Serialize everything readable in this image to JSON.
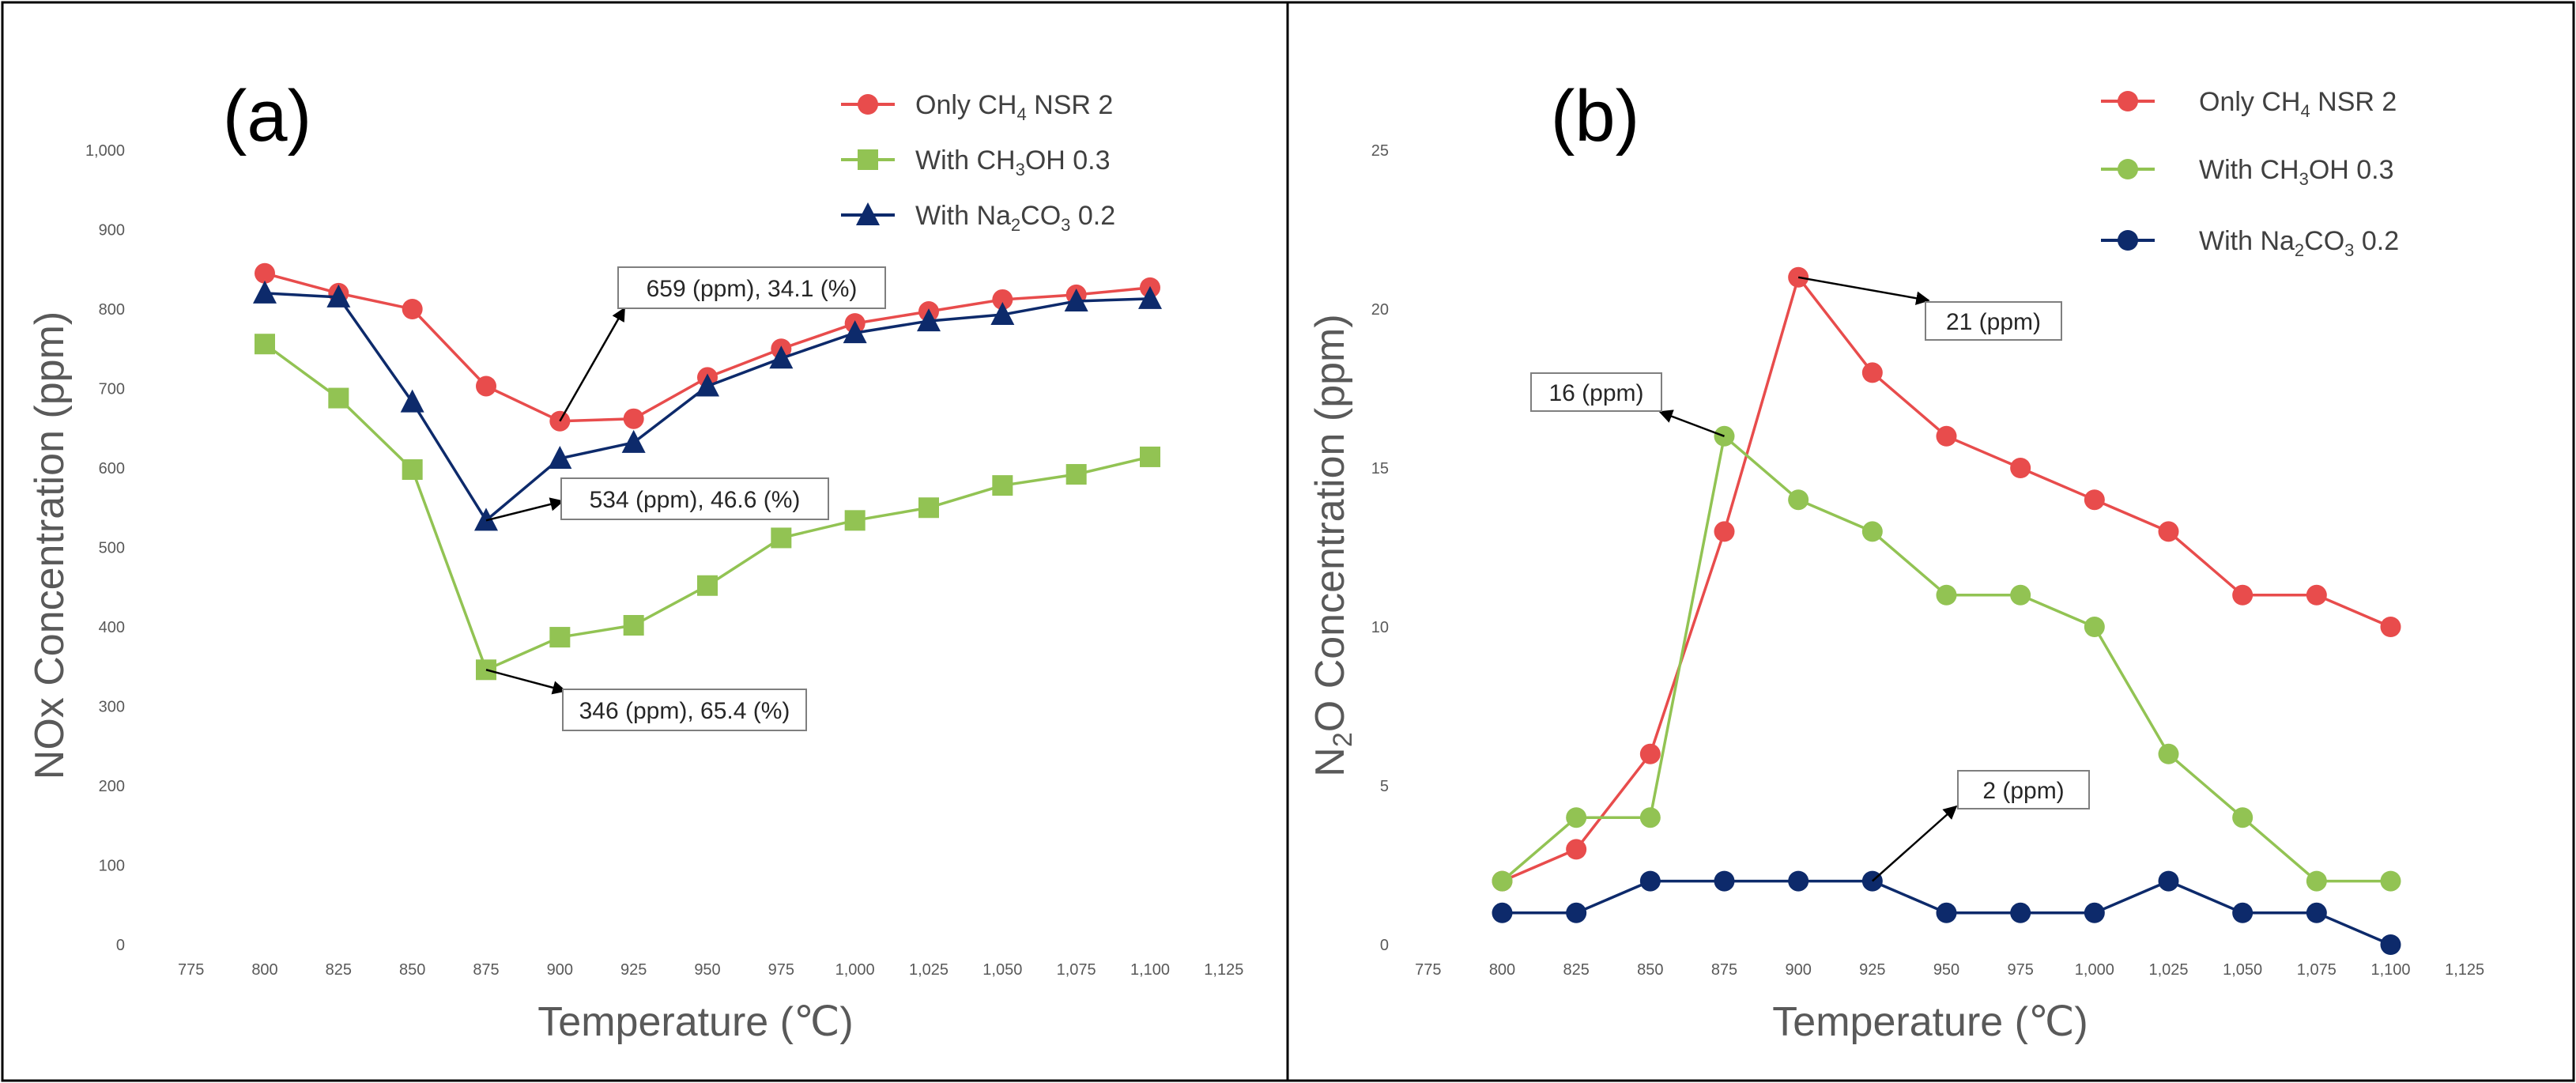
{
  "chart_data": [
    {
      "type": "line",
      "panel_label": "(a)",
      "xlabel": "Temperature (℃)",
      "ylabel": "NOx Concentration (ppm)",
      "xlim": [
        762.5,
        1137.5
      ],
      "ylim": [
        0,
        1000
      ],
      "x_ticks": [
        "775",
        "800",
        "825",
        "850",
        "875",
        "900",
        "925",
        "950",
        "975",
        "1,000",
        "1,025",
        "1,050",
        "1,075",
        "1,100",
        "1,125"
      ],
      "y_ticks": [
        "0",
        "100",
        "200",
        "300",
        "400",
        "500",
        "600",
        "700",
        "800",
        "900",
        "1,000"
      ],
      "x": [
        800,
        825,
        850,
        875,
        900,
        925,
        950,
        975,
        1000,
        1025,
        1050,
        1075,
        1100
      ],
      "series": [
        {
          "name": "Only CH4 NSR 2",
          "legend_main": "Only CH",
          "legend_sub": "4",
          "legend_tail": " NSR 2",
          "color": "#e84c4c",
          "marker": "circle",
          "values": [
            845,
            820,
            800,
            703,
            659,
            662,
            714,
            750,
            782,
            797,
            812,
            818,
            827
          ]
        },
        {
          "name": "With CH3OH 0.3",
          "legend_main": "With CH",
          "legend_sub": "3",
          "legend_tail": "OH 0.3",
          "color": "#92c353",
          "marker": "square",
          "values": [
            756,
            688,
            598,
            346,
            387,
            402,
            452,
            512,
            534,
            550,
            578,
            592,
            614
          ]
        },
        {
          "name": "With Na2CO3 0.2",
          "legend_main": "With Na",
          "legend_sub": "2",
          "legend_tail": "CO",
          "legend_sub2": "3",
          "legend_tail2": " 0.2",
          "color": "#0d2a6b",
          "marker": "triangle",
          "values": [
            820,
            815,
            683,
            534,
            612,
            632,
            703,
            738,
            770,
            785,
            793,
            810,
            813
          ]
        }
      ],
      "annotations": [
        {
          "text": "659 (ppm), 34.1 (%)",
          "point": [
            900,
            659
          ]
        },
        {
          "text": "534 (ppm), 46.6 (%)",
          "point": [
            875,
            534
          ]
        },
        {
          "text": "346 (ppm), 65.4 (%)",
          "point": [
            875,
            346
          ]
        }
      ]
    },
    {
      "type": "line",
      "panel_label": "(b)",
      "xlabel": "Temperature (℃)",
      "ylabel_main": "N",
      "ylabel_sub": "2",
      "ylabel_tail": "O Concentration (ppm)",
      "xlim": [
        762.5,
        1137.5
      ],
      "ylim": [
        0,
        25
      ],
      "x_ticks": [
        "775",
        "800",
        "825",
        "850",
        "875",
        "900",
        "925",
        "950",
        "975",
        "1,000",
        "1,025",
        "1,050",
        "1,075",
        "1,100",
        "1,125"
      ],
      "y_ticks": [
        "0",
        "5",
        "10",
        "15",
        "20",
        "25"
      ],
      "x": [
        800,
        825,
        850,
        875,
        900,
        925,
        950,
        975,
        1000,
        1025,
        1050,
        1075,
        1100
      ],
      "series": [
        {
          "name": "Only CH4 NSR 2",
          "legend_main": "Only CH",
          "legend_sub": "4",
          "legend_tail": " NSR 2",
          "color": "#e84c4c",
          "marker": "circle",
          "values": [
            2,
            3,
            6,
            13,
            21,
            18,
            16,
            15,
            14,
            13,
            11,
            11,
            10
          ]
        },
        {
          "name": "With CH3OH 0.3",
          "legend_main": "With CH",
          "legend_sub": "3",
          "legend_tail": "OH 0.3",
          "color": "#92c353",
          "marker": "circle",
          "values": [
            2,
            4,
            4,
            16,
            14,
            13,
            11,
            11,
            10,
            6,
            4,
            2,
            2
          ]
        },
        {
          "name": "With Na2CO3 0.2",
          "legend_main": "With Na",
          "legend_sub": "2",
          "legend_tail": "CO",
          "legend_sub2": "3",
          "legend_tail2": " 0.2",
          "color": "#0d2a6b",
          "marker": "circle",
          "values": [
            1,
            1,
            2,
            2,
            2,
            2,
            1,
            1,
            1,
            2,
            1,
            1,
            0
          ]
        }
      ],
      "annotations": [
        {
          "text": "21 (ppm)",
          "point": [
            900,
            21
          ]
        },
        {
          "text": "16 (ppm)",
          "point": [
            875,
            16
          ]
        },
        {
          "text": "2 (ppm)",
          "point": [
            925,
            2
          ]
        }
      ]
    }
  ]
}
